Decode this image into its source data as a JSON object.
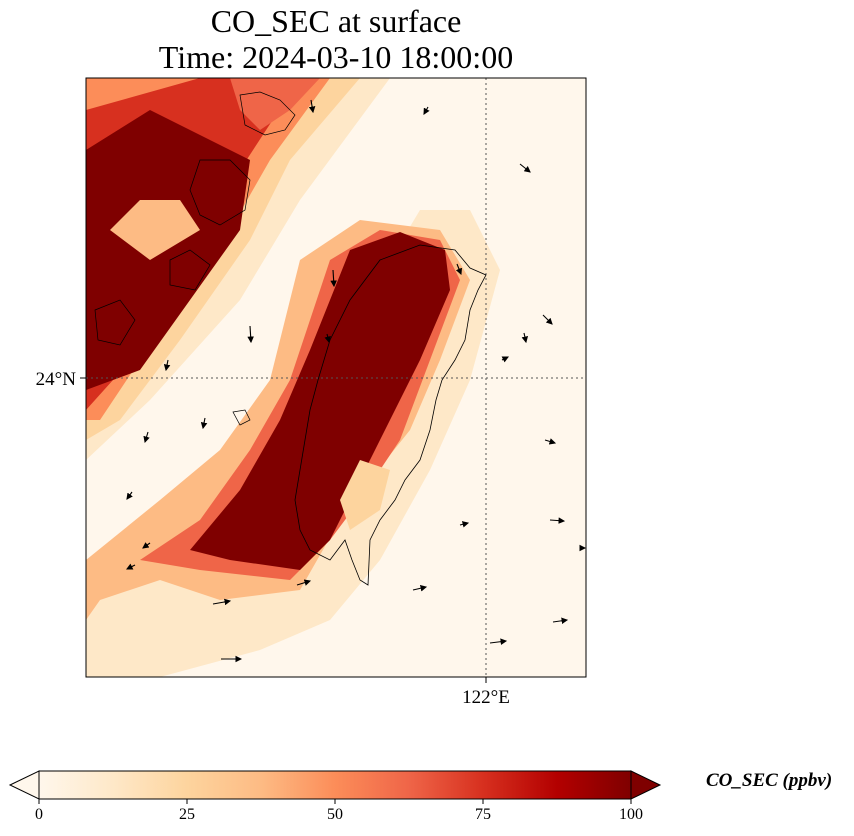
{
  "title_line1": "CO_SEC at surface",
  "title_line2": "Time: 2024-03-10 18:00:00",
  "map": {
    "lat_label": "24°N",
    "lon_label": "122°E",
    "gridlines": "dotted",
    "coastline": "Taiwan"
  },
  "colorbar": {
    "label": "CO_SEC (ppbv)",
    "ticks": [
      "0",
      "25",
      "50",
      "75",
      "100"
    ],
    "min": 0,
    "max": 100,
    "extend": "both",
    "colormap": "OrRd",
    "colors": [
      "#fff7ec",
      "#fee8c8",
      "#fdd49e",
      "#fdbb84",
      "#fc8d59",
      "#ef6548",
      "#d7301f",
      "#b30000",
      "#7f0000"
    ]
  }
}
